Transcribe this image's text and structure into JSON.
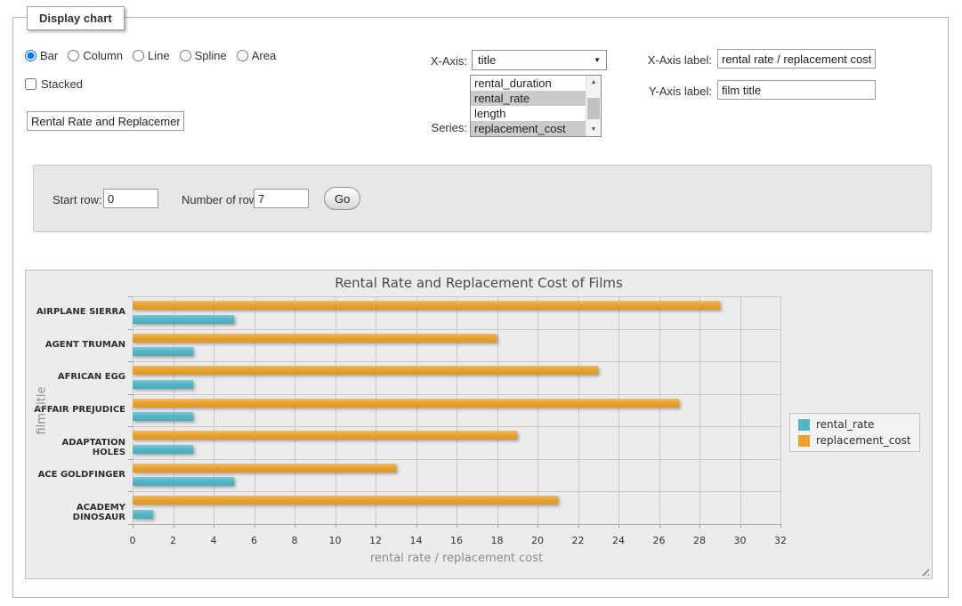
{
  "panel": {
    "legend": "Display chart"
  },
  "chart_types": {
    "options": [
      {
        "label": "Bar",
        "checked": true
      },
      {
        "label": "Column",
        "checked": false
      },
      {
        "label": "Line",
        "checked": false
      },
      {
        "label": "Spline",
        "checked": false
      },
      {
        "label": "Area",
        "checked": false
      }
    ]
  },
  "stacked": {
    "label": "Stacked",
    "checked": false
  },
  "chart_title_input": {
    "value": "Rental Rate and Replacement Cost of Films"
  },
  "x_axis_select": {
    "label": "X-Axis:",
    "value": "title"
  },
  "series_list": {
    "label": "Series:",
    "options": [
      {
        "label": "rental_duration",
        "selected": false
      },
      {
        "label": "rental_rate",
        "selected": true
      },
      {
        "label": "length",
        "selected": false
      },
      {
        "label": "replacement_cost",
        "selected": true
      }
    ]
  },
  "x_axis_label_input": {
    "label": "X-Axis label:",
    "value": "rental rate / replacement cost"
  },
  "y_axis_label_input": {
    "label": "Y-Axis label:",
    "value": "film title"
  },
  "row_controls": {
    "start_row_label": "Start row:",
    "start_row_value": "0",
    "num_rows_label": "Number of rows:",
    "num_rows_value": "7",
    "go_label": "Go"
  },
  "chart_data": {
    "type": "bar",
    "title": "Rental Rate and Replacement Cost of Films",
    "categories": [
      "AIRPLANE SIERRA",
      "AGENT TRUMAN",
      "AFRICAN EGG",
      "AFFAIR PREJUDICE",
      "ADAPTATION HOLES",
      "ACE GOLDFINGER",
      "ACADEMY DINOSAUR"
    ],
    "series": [
      {
        "name": "rental_rate",
        "color": "#53b6c7",
        "values": [
          4.99,
          2.99,
          2.99,
          2.99,
          2.99,
          4.99,
          0.99
        ]
      },
      {
        "name": "replacement_cost",
        "color": "#eaa22f",
        "values": [
          28.99,
          17.99,
          22.99,
          26.99,
          18.99,
          12.99,
          20.99
        ]
      }
    ],
    "xlabel": "rental rate / replacement cost",
    "ylabel": "film title",
    "xlim": [
      0,
      32
    ],
    "xtick_step": 2,
    "grid": true,
    "legend_position": "right"
  }
}
